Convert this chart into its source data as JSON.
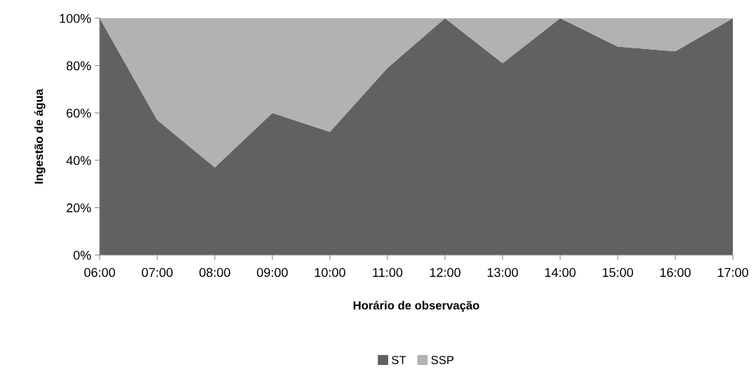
{
  "chart_data": {
    "type": "area",
    "stacked": true,
    "xlabel": "Horário de observação",
    "ylabel": "Ingestão de água",
    "categories": [
      "06:00",
      "07:00",
      "08:00",
      "09:00",
      "10:00",
      "11:00",
      "12:00",
      "13:00",
      "14:00",
      "15:00",
      "16:00",
      "17:00"
    ],
    "series": [
      {
        "name": "ST",
        "color": "#616161",
        "values": [
          100,
          57,
          37,
          60,
          52,
          79,
          100,
          81,
          100,
          88,
          86,
          100
        ]
      },
      {
        "name": "SSP",
        "color": "#b2b2b2",
        "values": [
          0,
          43,
          63,
          40,
          48,
          21,
          0,
          19,
          0,
          12,
          14,
          0
        ]
      }
    ],
    "ylim": [
      0,
      100
    ],
    "yticks": [
      {
        "value": 0,
        "label": "0%"
      },
      {
        "value": 20,
        "label": "20%"
      },
      {
        "value": 40,
        "label": "40%"
      },
      {
        "value": 60,
        "label": "60%"
      },
      {
        "value": 80,
        "label": "80%"
      },
      {
        "value": 100,
        "label": "100%"
      }
    ],
    "grid": false,
    "legend": "bottom"
  }
}
